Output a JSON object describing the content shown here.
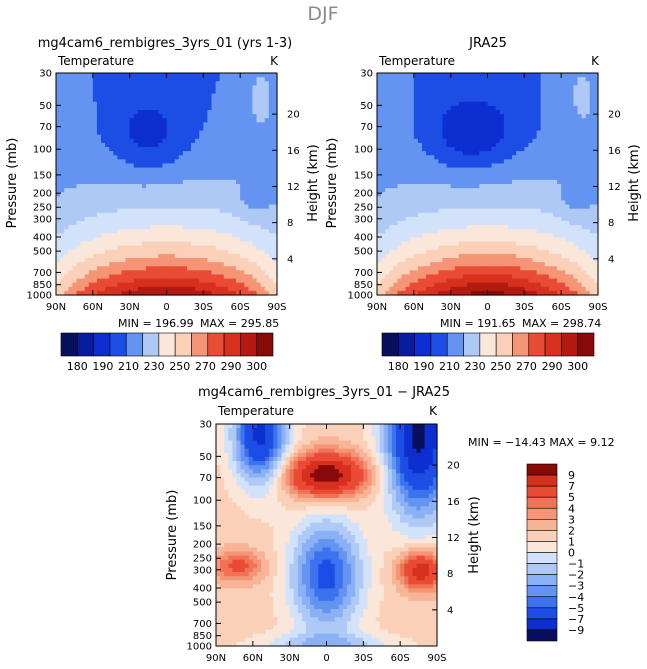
{
  "figure": {
    "title": "DJF"
  },
  "colors": {
    "cold_palette": [
      "#08105e",
      "#0a1c9e",
      "#0d2fd1",
      "#1c4ee6",
      "#3d72ee",
      "#6494f2",
      "#8ab0f5",
      "#afc9f7",
      "#d2e2fa"
    ],
    "warm_palette": [
      "#fbe6da",
      "#fbd0b8",
      "#f8b497",
      "#f59576",
      "#f17255",
      "#ea4b34",
      "#d7301f",
      "#b51a12",
      "#870908"
    ],
    "diff_palette": [
      "#08105e",
      "#0a1c9e",
      "#0d2fd1",
      "#1c4ee6",
      "#3d72ee",
      "#6494f2",
      "#8ab0f5",
      "#afc9f7",
      "#d2e2fa",
      "#fbe6da",
      "#fbd0b8",
      "#f8b497",
      "#f59576",
      "#f17255",
      "#ea4b34",
      "#d7301f",
      "#b51a12",
      "#870908"
    ]
  },
  "chart_data": [
    {
      "type": "heatmap",
      "title": "mg4cam6_rembigres_3yrs_01 (yrs 1-3)",
      "subtitle_left": "Temperature",
      "subtitle_right": "K",
      "ylabel": "Pressure (mb)",
      "y2label": "Height (km)",
      "x_ticks": [
        "90N",
        "60N",
        "30N",
        "0",
        "30S",
        "60S",
        "90S"
      ],
      "x_values": [
        90,
        60,
        30,
        0,
        -30,
        -60,
        -90
      ],
      "y_ticks": [
        "30",
        "50",
        "70",
        "100",
        "150",
        "200",
        "250",
        "300",
        "400",
        "500",
        "700",
        "850",
        "1000"
      ],
      "y_values": [
        30,
        50,
        70,
        100,
        150,
        200,
        250,
        300,
        400,
        500,
        700,
        850,
        1000
      ],
      "y2_ticks": [
        "4",
        "8",
        "12",
        "16",
        "20"
      ],
      "y2_values": [
        4,
        8,
        12,
        16,
        20
      ],
      "min_label": "MIN =  196.99",
      "max_label": "MAX =  295.85",
      "min": 196.99,
      "max": 295.85,
      "levels": [
        180,
        190,
        200,
        210,
        220,
        230,
        240,
        250,
        260,
        270,
        280,
        290,
        300
      ],
      "colorbar_ticks": [
        "180",
        "190",
        "210",
        "230",
        "250",
        "270",
        "290",
        "300"
      ]
    },
    {
      "type": "heatmap",
      "title": "JRA25",
      "subtitle_left": "Temperature",
      "subtitle_right": "K",
      "ylabel": "Pressure (mb)",
      "y2label": "Height (km)",
      "x_ticks": [
        "90N",
        "60N",
        "30N",
        "0",
        "30S",
        "60S",
        "90S"
      ],
      "x_values": [
        90,
        60,
        30,
        0,
        -30,
        -60,
        -90
      ],
      "y_ticks": [
        "30",
        "50",
        "70",
        "100",
        "150",
        "200",
        "250",
        "300",
        "400",
        "500",
        "700",
        "850",
        "1000"
      ],
      "y_values": [
        30,
        50,
        70,
        100,
        150,
        200,
        250,
        300,
        400,
        500,
        700,
        850,
        1000
      ],
      "y2_ticks": [
        "4",
        "8",
        "12",
        "16",
        "20"
      ],
      "y2_values": [
        4,
        8,
        12,
        16,
        20
      ],
      "min_label": "MIN =  191.65",
      "max_label": "MAX =  298.74",
      "min": 191.65,
      "max": 298.74,
      "levels": [
        180,
        190,
        200,
        210,
        220,
        230,
        240,
        250,
        260,
        270,
        280,
        290,
        300
      ],
      "colorbar_ticks": [
        "180",
        "190",
        "210",
        "230",
        "250",
        "270",
        "290",
        "300"
      ]
    },
    {
      "type": "heatmap",
      "title": "mg4cam6_rembigres_3yrs_01 − JRA25",
      "subtitle_left": "Temperature",
      "subtitle_right": "K",
      "ylabel": "Pressure (mb)",
      "y2label": "Height (km)",
      "x_ticks": [
        "90N",
        "60N",
        "30N",
        "0",
        "30S",
        "60S",
        "90S"
      ],
      "x_values": [
        90,
        60,
        30,
        0,
        -30,
        -60,
        -90
      ],
      "y_ticks": [
        "30",
        "50",
        "70",
        "100",
        "150",
        "200",
        "250",
        "300",
        "400",
        "500",
        "700",
        "850",
        "1000"
      ],
      "y_values": [
        30,
        50,
        70,
        100,
        150,
        200,
        250,
        300,
        400,
        500,
        700,
        850,
        1000
      ],
      "y2_ticks": [
        "4",
        "8",
        "12",
        "16",
        "20"
      ],
      "y2_values": [
        4,
        8,
        12,
        16,
        20
      ],
      "minmax_label": "MIN = −14.43   MAX =     9.12",
      "min": -14.43,
      "max": 9.12,
      "levels": [
        -9,
        -7,
        -5,
        -4,
        -3,
        -2,
        -1,
        0,
        1,
        2,
        3,
        4,
        5,
        7,
        9
      ],
      "colorbar_ticks": [
        "9",
        "7",
        "5",
        "4",
        "3",
        "2",
        "1",
        "0",
        "−1",
        "−2",
        "−3",
        "−4",
        "−5",
        "−7",
        "−9"
      ]
    }
  ]
}
